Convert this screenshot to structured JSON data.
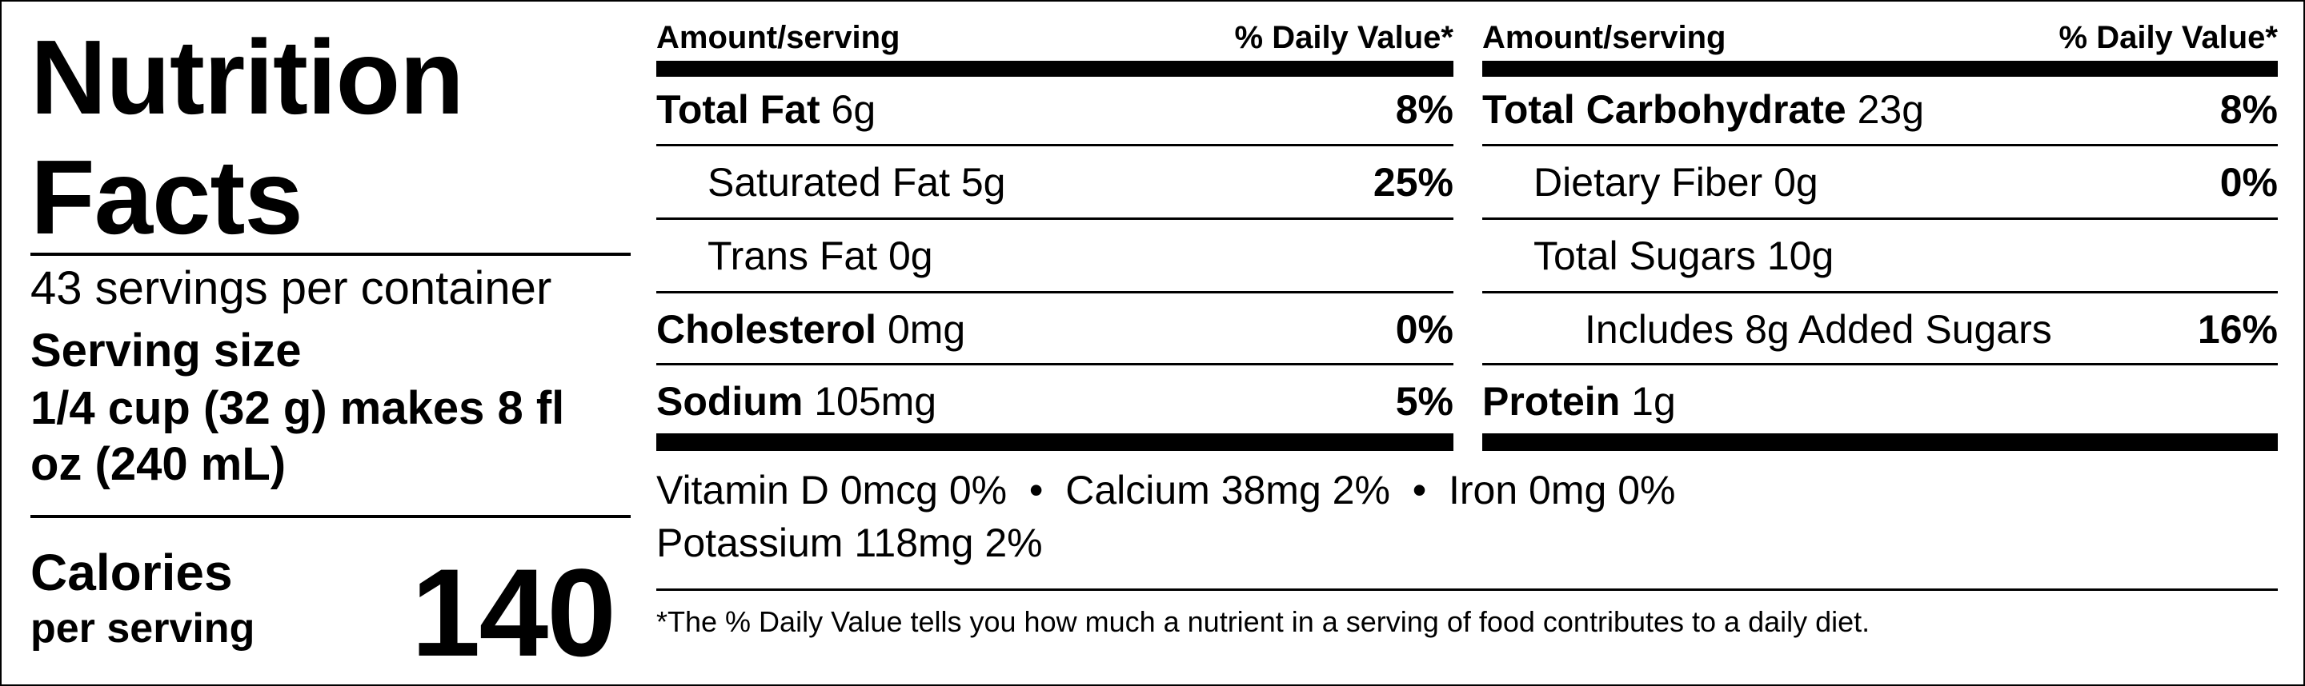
{
  "title": "Nutrition Facts",
  "servings_per_container": "43 servings per container",
  "serving_size_label": "Serving size",
  "serving_size_value": "1/4 cup (32 g) makes 8 fl oz (240 mL)",
  "calories": {
    "label": "Calories",
    "sub": "per serving",
    "value": "140"
  },
  "header": {
    "amount": "Amount/serving",
    "dv": "% Daily Value*"
  },
  "left_rows": [
    {
      "name": "Total Fat",
      "amount": " 6g",
      "dv": "8%"
    },
    {
      "name": "Saturated Fat",
      "amount": " 5g",
      "dv": "25%"
    },
    {
      "name": "Trans Fat",
      "amount": " 0g",
      "dv": ""
    },
    {
      "name": "Cholesterol",
      "amount": " 0mg",
      "dv": "0%"
    },
    {
      "name": "Sodium",
      "amount": " 105mg",
      "dv": "5%"
    }
  ],
  "right_rows": [
    {
      "name": "Total Carbohydrate",
      "amount": " 23g",
      "dv": "8%"
    },
    {
      "name": "Dietary Fiber",
      "amount": " 0g",
      "dv": "0%"
    },
    {
      "name": "Total Sugars",
      "amount": " 10g",
      "dv": ""
    },
    {
      "name": "Includes 8g Added Sugars",
      "amount": "",
      "dv": "16%"
    },
    {
      "name": "Protein",
      "amount": " 1g",
      "dv": ""
    }
  ],
  "vitamins_line1": "Vitamin D 0mcg 0%  •  Calcium 38mg 2%  •  Iron 0mg 0%",
  "vitamins_line2": "Potassium 118mg 2%",
  "footnote": "*The % Daily Value tells you how much a nutrient in a serving of food contributes to a daily diet."
}
